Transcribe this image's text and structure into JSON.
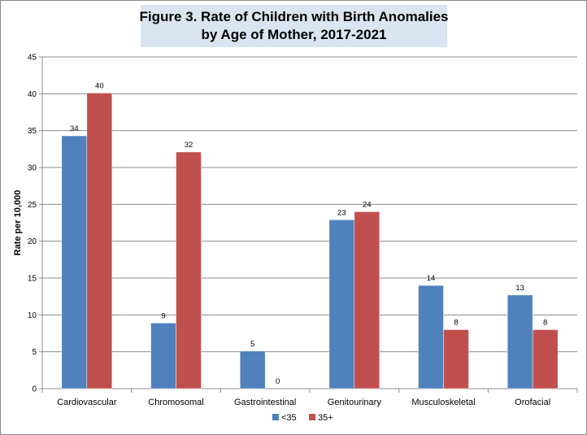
{
  "chart_data": {
    "type": "bar",
    "title_line1": "Figure 3. Rate of Children with Birth Anomalies",
    "title_line2": "by Age of Mother, 2017-2021",
    "xlabel": "",
    "ylabel": "Rate per 10,000",
    "ylim": [
      0,
      45
    ],
    "yticks": [
      0,
      5,
      10,
      15,
      20,
      25,
      30,
      35,
      40,
      45
    ],
    "grid": true,
    "legend_position": "bottom",
    "categories": [
      "Cardiovascular",
      "Chromosomal",
      "Gastrointestinal",
      "Genitourinary",
      "Musculoskeletal",
      "Orofacial"
    ],
    "series": [
      {
        "name": "<35",
        "color": "#4f81bd",
        "values": [
          34.3,
          8.9,
          5.1,
          22.9,
          14.0,
          12.7
        ],
        "labels": [
          "34",
          "9",
          "5",
          "23",
          "14",
          "13"
        ]
      },
      {
        "name": "35+",
        "color": "#c0504d",
        "values": [
          40.1,
          32.1,
          0,
          24.0,
          8.0,
          8.0
        ],
        "labels": [
          "40",
          "32",
          "0",
          "24",
          "8",
          "8"
        ]
      }
    ]
  }
}
